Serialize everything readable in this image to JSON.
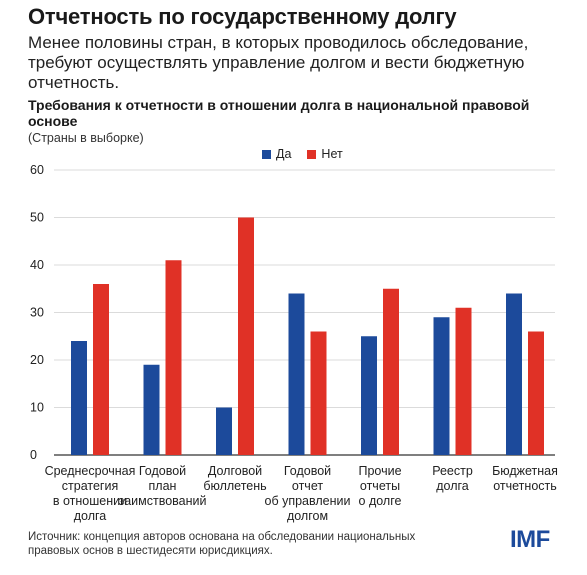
{
  "headline": "Отчетность по государственному долгу",
  "subheadline": "Менее половины стран, в которых проводилось обследование, требуют осуществлять управление долгом и вести бюджетную отчетность.",
  "source": "Источник: концепция авторов основана на обследовании национальных правовых основ в шестидесяти юрисдикциях.",
  "logo": "IMF",
  "colors": {
    "yes": "#1c4a9b",
    "no": "#e03126",
    "grid": "#cfcfcf",
    "axis": "#333333"
  },
  "chart_data": {
    "type": "bar",
    "title": "Требования к отчетности в отношении долга в национальной правовой основе",
    "subtitle": "(Страны в выборке)",
    "xlabel": "",
    "ylabel": "",
    "ylim": [
      0,
      60
    ],
    "yticks": [
      0,
      10,
      20,
      30,
      40,
      50,
      60
    ],
    "grid": true,
    "legend_position": "top-center",
    "categories": [
      [
        "Среднесрочная",
        "стратегия",
        "в отношении",
        "долга"
      ],
      [
        "Годовой",
        "план",
        "заимствований"
      ],
      [
        "Долговой",
        "бюллетень"
      ],
      [
        "Годовой",
        "отчет",
        "об управлении",
        "долгом"
      ],
      [
        "Прочие",
        "отчеты",
        "о долге"
      ],
      [
        "Реестр",
        "долга"
      ],
      [
        "Бюджетная",
        "отчетность"
      ]
    ],
    "series": [
      {
        "name": "Да",
        "color": "#1c4a9b",
        "values": [
          24,
          19,
          10,
          34,
          25,
          29,
          34
        ]
      },
      {
        "name": "Нет",
        "color": "#e03126",
        "values": [
          36,
          41,
          50,
          26,
          35,
          31,
          26
        ]
      }
    ]
  }
}
